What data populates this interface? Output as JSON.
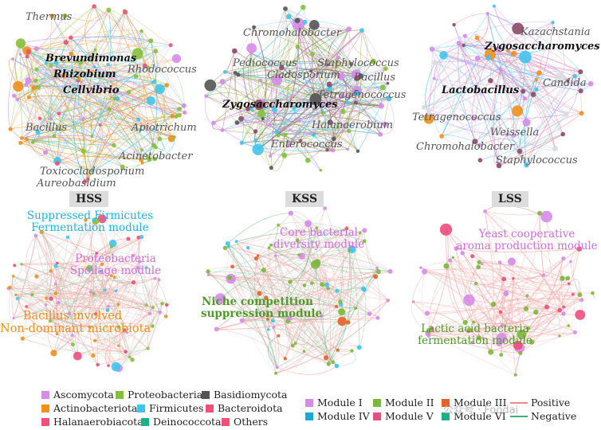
{
  "panels": {
    "hss": {
      "tag": "HSS",
      "genera": [
        "Thermus",
        "Brevundimonas",
        "Rhizobium",
        "Cellvibrio",
        "Rhodococcus",
        "Bacillus",
        "Apiotrichum",
        "Acinetobacter",
        "Toxicocladosporium",
        "Aureobasidium"
      ],
      "modules": [
        "Suppressed Firmicutes\nFermentation module",
        "Proteobacteria\nSpoilage module",
        "Bacillus involved\nNon-dominant microbiota"
      ]
    },
    "kss": {
      "tag": "KSS",
      "genera": [
        "Chromohalobacter",
        "Pediococcus",
        "Staphylococcus",
        "Cladosporium",
        "Bacillus",
        "Tetragenococcus",
        "Zygosaccharomyces",
        "Halanaerobium",
        "Enterococcus"
      ],
      "modules": [
        "Core bacterial\ndiversity module",
        "Niche competition\nsuppression module"
      ]
    },
    "lss": {
      "tag": "LSS",
      "genera": [
        "Kazachstania",
        "Zygosaccharomyces",
        "Candida",
        "Lactobacillus",
        "Tetragenococcus",
        "Weissella",
        "Chromohalobacter",
        "Staphylococcus"
      ],
      "modules": [
        "Yeast cooperative\naroma production module",
        "Lactic acid bacteria\nfermentation module"
      ]
    }
  },
  "legend": {
    "phyla": [
      {
        "label": "Ascomycota",
        "color": "#d58be8"
      },
      {
        "label": "Proteobacteria",
        "color": "#86c03a"
      },
      {
        "label": "Basidiomycota",
        "color": "#555555"
      },
      {
        "label": "Actinobacteriota",
        "color": "#f0901e"
      },
      {
        "label": "Firmicutes",
        "color": "#41c4ec"
      },
      {
        "label": "Bacteroidota",
        "color": "#f0507a"
      },
      {
        "label": "Halanaerobiacota",
        "color": "#f0507a"
      },
      {
        "label": "Deinococcota",
        "color": "#19b08a"
      },
      {
        "label": "Others",
        "color": "#f0507a"
      }
    ],
    "modules": [
      {
        "label": "Module I",
        "color": "#d58be8"
      },
      {
        "label": "Module II",
        "color": "#7cb83a"
      },
      {
        "label": "Module III",
        "color": "#e0632a"
      },
      {
        "label": "Module IV",
        "color": "#1aa8d6"
      },
      {
        "label": "Module V",
        "color": "#ec4e7c"
      },
      {
        "label": "Module VI",
        "color": "#19b08a"
      }
    ],
    "edges": [
      {
        "label": "Positive",
        "color": "#f08a8a"
      },
      {
        "label": "Negative",
        "color": "#3fb07a"
      }
    ]
  },
  "colors": {
    "ascomycota": "#d58be8",
    "proteobacteria": "#86c03a",
    "basidiomycota": "#555555",
    "actinobacteriota": "#f0901e",
    "firmicutes": "#41c4ec",
    "pink": "#f0507a",
    "firmicutes_text": "#1fb2e8",
    "proteo_text": "#cc6fe0",
    "bacillus_text": "#ef8e1c",
    "kss_core_text": "#cc6fe0",
    "kss_niche_text": "#4f9a2a",
    "lss_yeast_text": "#cc6fe0",
    "lss_lab_text": "#4f9a2a"
  },
  "watermark": "公众号 · Foodai"
}
